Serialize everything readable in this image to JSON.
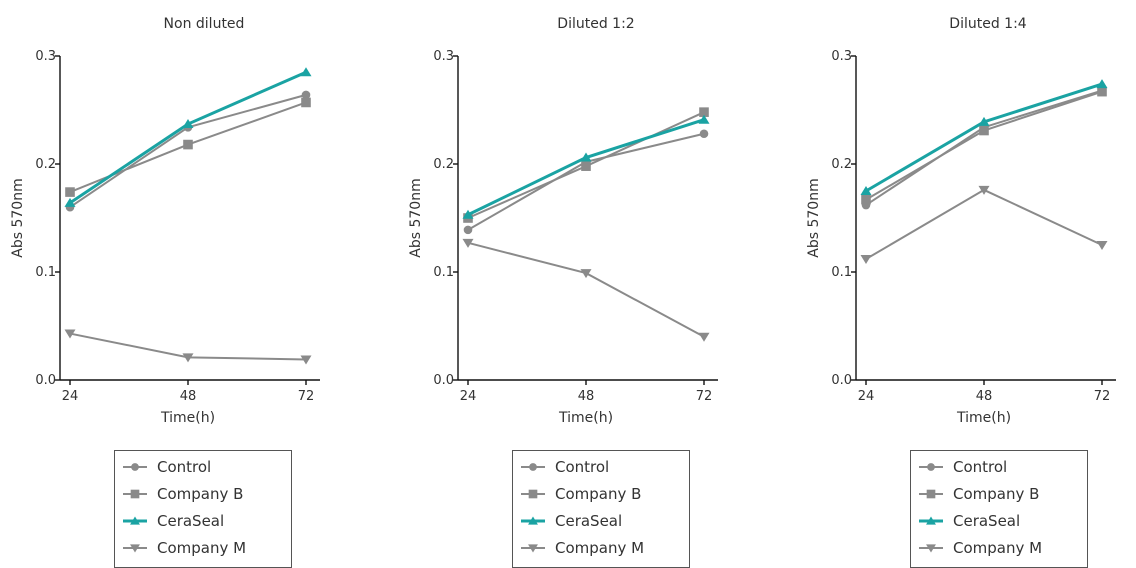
{
  "colors": {
    "axis": "#111111",
    "text": "#333333",
    "gray_series": "#8a8a8a",
    "ceraseal": "#1aa3a3"
  },
  "chart_data": [
    {
      "type": "line",
      "title": "Non diluted",
      "xlabel": "Time(h)",
      "ylabel": "Abs 570nm",
      "x": [
        24,
        48,
        72
      ],
      "xticks": [
        "24",
        "48",
        "72"
      ],
      "yticks": [
        "0.0",
        "0.1",
        "0.2",
        "0.3"
      ],
      "ylim": [
        0,
        0.3
      ],
      "series": [
        {
          "name": "Control",
          "marker": "circle",
          "values": [
            0.16,
            0.234,
            0.264
          ]
        },
        {
          "name": "Company B",
          "marker": "square",
          "values": [
            0.174,
            0.218,
            0.257
          ]
        },
        {
          "name": "CeraSeal",
          "marker": "triangle-up",
          "values": [
            0.164,
            0.237,
            0.285
          ]
        },
        {
          "name": "Company M",
          "marker": "triangle-down",
          "values": [
            0.043,
            0.021,
            0.019
          ]
        }
      ]
    },
    {
      "type": "line",
      "title": "Diluted 1:2",
      "xlabel": "Time(h)",
      "ylabel": "Abs 570nm",
      "x": [
        24,
        48,
        72
      ],
      "xticks": [
        "24",
        "48",
        "72"
      ],
      "yticks": [
        "0.0",
        "0.1",
        "0.2",
        "0.3"
      ],
      "ylim": [
        0,
        0.3
      ],
      "series": [
        {
          "name": "Control",
          "marker": "circle",
          "values": [
            0.139,
            0.202,
            0.228
          ]
        },
        {
          "name": "Company B",
          "marker": "square",
          "values": [
            0.15,
            0.198,
            0.248
          ]
        },
        {
          "name": "CeraSeal",
          "marker": "triangle-up",
          "values": [
            0.153,
            0.206,
            0.241
          ]
        },
        {
          "name": "Company M",
          "marker": "triangle-down",
          "values": [
            0.127,
            0.099,
            0.04
          ]
        }
      ]
    },
    {
      "type": "line",
      "title": "Diluted 1:4",
      "xlabel": "Time(h)",
      "ylabel": "Abs 570nm",
      "x": [
        24,
        48,
        72
      ],
      "xticks": [
        "24",
        "48",
        "72"
      ],
      "yticks": [
        "0.0",
        "0.1",
        "0.2",
        "0.3"
      ],
      "ylim": [
        0,
        0.3
      ],
      "series": [
        {
          "name": "Control",
          "marker": "circle",
          "values": [
            0.162,
            0.234,
            0.268
          ]
        },
        {
          "name": "Company B",
          "marker": "square",
          "values": [
            0.167,
            0.231,
            0.267
          ]
        },
        {
          "name": "CeraSeal",
          "marker": "triangle-up",
          "values": [
            0.175,
            0.239,
            0.274
          ]
        },
        {
          "name": "Company M",
          "marker": "triangle-down",
          "values": [
            0.112,
            0.176,
            0.125
          ]
        }
      ]
    }
  ]
}
